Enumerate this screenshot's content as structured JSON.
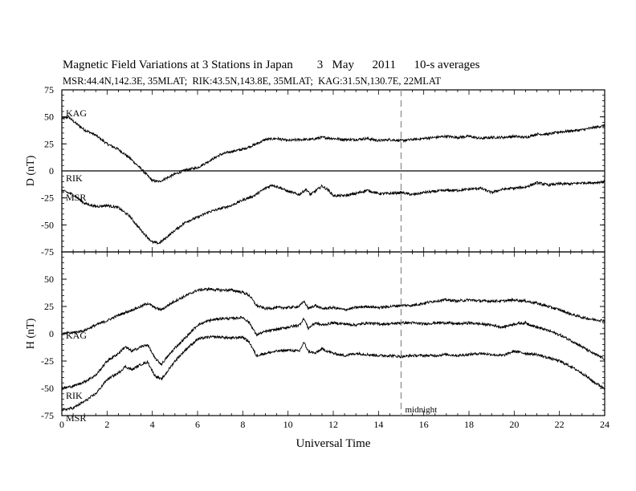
{
  "title": "Magnetic Field Variations at 3 Stations in Japan        3   May      2011      10-s averages",
  "subtitle": "MSR:44.4N,142.3E, 35MLAT;  RIK:43.5N,143.8E, 35MLAT;  KAG:31.5N,130.7E, 22MLAT",
  "chart_data": [
    {
      "type": "line",
      "ylabel": "D (nT)",
      "ylim": [
        -75,
        75
      ],
      "yticks": [
        75,
        50,
        25,
        0,
        -25,
        -50,
        -75
      ],
      "xlim": [
        0,
        24
      ],
      "zero_line": true,
      "series": [
        {
          "name": "KAG",
          "x": [
            0,
            0.3,
            0.5,
            1,
            1.5,
            2,
            2.5,
            3,
            3.5,
            4,
            4.3,
            4.6,
            5,
            5.5,
            6,
            6.5,
            7,
            7.5,
            8,
            8.5,
            9,
            9.5,
            10,
            10.5,
            11,
            11.5,
            12,
            12.5,
            13,
            13.5,
            14,
            14.5,
            15,
            15.5,
            16,
            16.5,
            17,
            17.5,
            18,
            18.5,
            19,
            19.5,
            20,
            20.5,
            21,
            21.5,
            22,
            22.5,
            23,
            23.5,
            24
          ],
          "y": [
            48,
            50,
            46,
            38,
            33,
            25,
            20,
            12,
            2,
            -9,
            -10,
            -7,
            -3,
            1,
            3,
            9,
            15,
            18,
            20,
            24,
            29,
            30,
            28,
            29,
            29,
            31,
            30,
            29,
            29,
            30,
            28,
            29,
            28,
            29,
            30,
            31,
            32,
            31,
            32,
            30,
            31,
            31,
            32,
            31,
            34,
            34,
            36,
            37,
            38,
            40,
            42
          ]
        },
        {
          "name": "RIK",
          "x": [
            0,
            0.5,
            1,
            1.5,
            2,
            2.5,
            3,
            3.5,
            4,
            4.3,
            4.6,
            5,
            5.5,
            6,
            6.5,
            7,
            7.5,
            8,
            8.5,
            9,
            9.3,
            9.7,
            10,
            10.5,
            10.8,
            11,
            11.5,
            11.8,
            12,
            12.5,
            13,
            13.5,
            14,
            14.5,
            15,
            15.5,
            16,
            16.5,
            17,
            17.5,
            18,
            18.5,
            19,
            19.5,
            20,
            20.5,
            21,
            21.5,
            22,
            22.5,
            23,
            23.5,
            24
          ],
          "y": [
            -18,
            -22,
            -30,
            -33,
            -32,
            -34,
            -42,
            -55,
            -66,
            -67,
            -62,
            -55,
            -47,
            -43,
            -38,
            -35,
            -32,
            -27,
            -23,
            -16,
            -13,
            -16,
            -19,
            -22,
            -17,
            -22,
            -14,
            -18,
            -23,
            -23,
            -21,
            -18,
            -21,
            -21,
            -20,
            -22,
            -20,
            -19,
            -18,
            -18,
            -17,
            -16,
            -20,
            -17,
            -16,
            -15,
            -11,
            -13,
            -12,
            -12,
            -11,
            -11,
            -10
          ]
        }
      ],
      "labels": [
        "KAG",
        "RIK",
        "MSR"
      ]
    },
    {
      "type": "line",
      "ylabel": "H (nT)",
      "ylim": [
        -75,
        75
      ],
      "yticks": [
        75,
        50,
        25,
        0,
        -25,
        -50,
        -75
      ],
      "xlim": [
        0,
        24
      ],
      "xticks": [
        0,
        2,
        4,
        6,
        8,
        10,
        12,
        14,
        16,
        18,
        20,
        22,
        24
      ],
      "xlabel": "Universal Time",
      "series": [
        {
          "name": "KAG",
          "x": [
            0,
            0.5,
            1,
            1.5,
            2,
            2.5,
            3,
            3.5,
            3.8,
            4.1,
            4.4,
            5,
            5.5,
            6,
            6.5,
            7,
            7.5,
            8,
            8.3,
            8.6,
            9,
            9.5,
            10,
            10.5,
            10.7,
            10.9,
            11.2,
            11.5,
            12,
            12.5,
            13,
            13.5,
            14,
            14.5,
            15,
            15.5,
            16,
            16.5,
            17,
            17.5,
            18,
            18.5,
            19,
            19.5,
            20,
            20.5,
            21,
            21.5,
            22,
            22.5,
            23,
            23.5,
            24
          ],
          "y": [
            0,
            1,
            3,
            8,
            12,
            17,
            21,
            25,
            28,
            24,
            22,
            30,
            35,
            40,
            41,
            40,
            40,
            38,
            35,
            26,
            23,
            24,
            24,
            25,
            30,
            23,
            26,
            23,
            24,
            22,
            24,
            25,
            24,
            25,
            26,
            26,
            28,
            30,
            31,
            30,
            31,
            30,
            30,
            30,
            31,
            30,
            28,
            25,
            22,
            18,
            15,
            13,
            12
          ]
        },
        {
          "name": "RIK",
          "x": [
            0,
            0.5,
            1,
            1.5,
            2,
            2.5,
            2.8,
            3.1,
            3.5,
            3.8,
            4.1,
            4.4,
            5,
            5.5,
            6,
            6.5,
            7,
            7.5,
            8,
            8.3,
            8.6,
            9,
            9.5,
            10,
            10.5,
            10.7,
            10.9,
            11.2,
            11.5,
            12,
            12.5,
            13,
            13.5,
            14,
            14.5,
            15,
            15.5,
            16,
            16.5,
            17,
            17.5,
            18,
            18.5,
            19,
            19.5,
            20,
            20.5,
            21,
            21.5,
            22,
            22.5,
            23,
            23.5,
            24
          ],
          "y": [
            -50,
            -48,
            -44,
            -38,
            -25,
            -18,
            -12,
            -16,
            -12,
            -10,
            -22,
            -28,
            -13,
            -3,
            8,
            12,
            14,
            14,
            15,
            10,
            -1,
            2,
            4,
            6,
            8,
            14,
            5,
            10,
            8,
            10,
            9,
            8,
            10,
            9,
            9,
            10,
            10,
            9,
            10,
            10,
            9,
            10,
            9,
            8,
            6,
            9,
            10,
            6,
            3,
            -1,
            -6,
            -12,
            -18,
            -23
          ]
        },
        {
          "name": "MSR",
          "x": [
            0,
            0.5,
            1,
            1.5,
            2,
            2.5,
            2.8,
            3.1,
            3.5,
            3.8,
            4.1,
            4.4,
            5,
            5.5,
            6,
            6.5,
            7,
            7.5,
            8,
            8.3,
            8.6,
            9,
            9.5,
            10,
            10.5,
            10.7,
            10.9,
            11.2,
            11.5,
            12,
            12.5,
            13,
            13.5,
            14,
            14.5,
            15,
            15.5,
            16,
            16.5,
            17,
            17.5,
            18,
            18.5,
            19,
            19.5,
            20,
            20.5,
            21,
            21.5,
            22,
            22.5,
            23,
            23.5,
            24
          ],
          "y": [
            -70,
            -68,
            -62,
            -55,
            -42,
            -36,
            -30,
            -33,
            -28,
            -26,
            -38,
            -42,
            -25,
            -14,
            -5,
            -3,
            -3,
            -4,
            -3,
            -8,
            -20,
            -18,
            -16,
            -15,
            -16,
            -8,
            -16,
            -18,
            -14,
            -18,
            -20,
            -18,
            -19,
            -20,
            -20,
            -21,
            -20,
            -20,
            -20,
            -19,
            -20,
            -19,
            -18,
            -19,
            -20,
            -16,
            -18,
            -19,
            -22,
            -25,
            -30,
            -36,
            -44,
            -50
          ]
        }
      ],
      "labels": [
        "KAG",
        "RIK",
        "MSR"
      ]
    }
  ],
  "annotations": {
    "midnight_label": "midnight",
    "midnight_ut": 15
  }
}
